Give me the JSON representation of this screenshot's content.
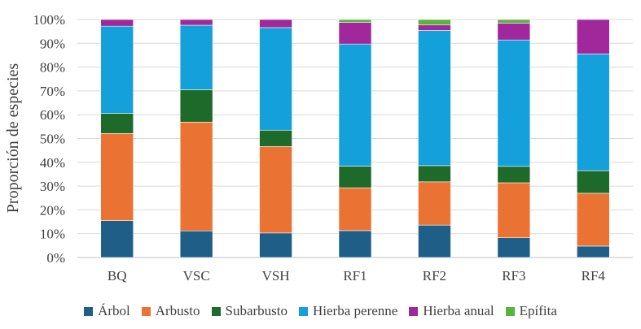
{
  "chart_data": {
    "type": "bar",
    "stacked": true,
    "title": "",
    "xlabel": "",
    "ylabel": "Proporción de especies",
    "ylim": [
      0,
      100
    ],
    "ytick_labels": [
      "0%",
      "10%",
      "20%",
      "30%",
      "40%",
      "50%",
      "60%",
      "70%",
      "80%",
      "90%",
      "100%"
    ],
    "categories": [
      "BQ",
      "VSC",
      "VSH",
      "RF1",
      "RF2",
      "RF3",
      "RF4"
    ],
    "legend_position": "bottom",
    "series": [
      {
        "name": "Árbol",
        "color": "#1f5f87",
        "values": [
          15.5,
          11.2,
          10.3,
          11.3,
          13.6,
          8.3,
          4.8
        ]
      },
      {
        "name": "Arbusto",
        "color": "#ea7334",
        "values": [
          36.6,
          45.7,
          36.3,
          18.0,
          18.2,
          23.1,
          22.2
        ]
      },
      {
        "name": "Subarbusto",
        "color": "#1e6a2a",
        "values": [
          8.5,
          13.6,
          6.9,
          9.1,
          6.8,
          6.9,
          9.5
        ]
      },
      {
        "name": "Hierba perenne",
        "color": "#14a0db",
        "values": [
          36.6,
          27.1,
          43.1,
          51.3,
          56.8,
          53.1,
          49.0
        ]
      },
      {
        "name": "Hierba anual",
        "color": "#a0289b",
        "values": [
          2.8,
          2.4,
          3.4,
          9.1,
          2.3,
          7.1,
          14.5
        ]
      },
      {
        "name": "Epífita",
        "color": "#5ab43b",
        "values": [
          0.0,
          0.0,
          0.0,
          1.2,
          2.3,
          1.5,
          0.0
        ]
      }
    ]
  }
}
